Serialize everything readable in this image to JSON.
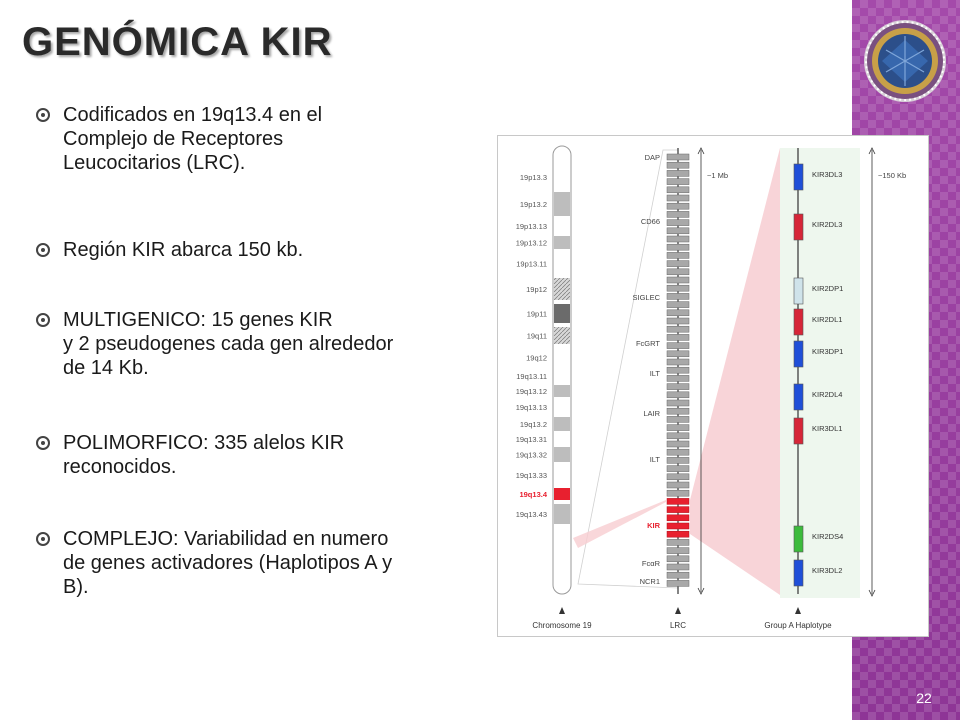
{
  "title": "GENÓMICA KIR",
  "bullets": [
    {
      "text": "Codificados en 19q13.4 en el\nComplejo de Receptores\nLeucocitarios (LRC)."
    },
    {
      "text": "Región KIR abarca 150 kb."
    },
    {
      "text": "MULTIGENICO: 15 genes KIR\ny 2 pseudogenes cada gen alrededor\nde 14 Kb."
    },
    {
      "text": "POLIMORFICO: 335 alelos KIR\nreconocidos."
    },
    {
      "text": "COMPLEJO: Variabilidad en numero\nde genes activadores (Haplotipos A y\nB)."
    }
  ],
  "page_number": "22",
  "figure": {
    "chromosome_label": "Chromosome 19",
    "lrc_label": "LRC",
    "haplotype_label": "Group A Haplotype",
    "lrc_scale": "~1 Mb",
    "haplotype_scale": "~150 Kb",
    "bands": [
      "19p13.3",
      "19p13.2",
      "19p13.13",
      "19p13.12",
      "19p13.11",
      "19p12",
      "19p11",
      "19q11",
      "19q12",
      "19q13.11",
      "19q13.12",
      "19q13.13",
      "19q13.2",
      "19q13.31",
      "19q13.32",
      "19q13.33",
      "19q13.4",
      "19q13.43"
    ],
    "lrc_genes": [
      "DAP",
      "CD66",
      "SIGLEC",
      "FcGRT",
      "ILT",
      "LAIR",
      "ILT",
      "KIR",
      "FcαR",
      "NCR1"
    ],
    "haplotype_genes": [
      {
        "name": "KIR3DL3",
        "color": "#1f4fd8"
      },
      {
        "name": "KIR2DL3",
        "color": "#d62638"
      },
      {
        "name": "KIR2DP1",
        "color": "#cfe3ea"
      },
      {
        "name": "KIR2DL1",
        "color": "#d62638"
      },
      {
        "name": "KIR3DP1",
        "color": "#1f4fd8"
      },
      {
        "name": "KIR2DL4",
        "color": "#1f4fd8"
      },
      {
        "name": "KIR3DL1",
        "color": "#d62638"
      },
      {
        "name": "KIR2DS4",
        "color": "#3cbb3c"
      },
      {
        "name": "KIR3DL2",
        "color": "#1f4fd8"
      }
    ]
  }
}
